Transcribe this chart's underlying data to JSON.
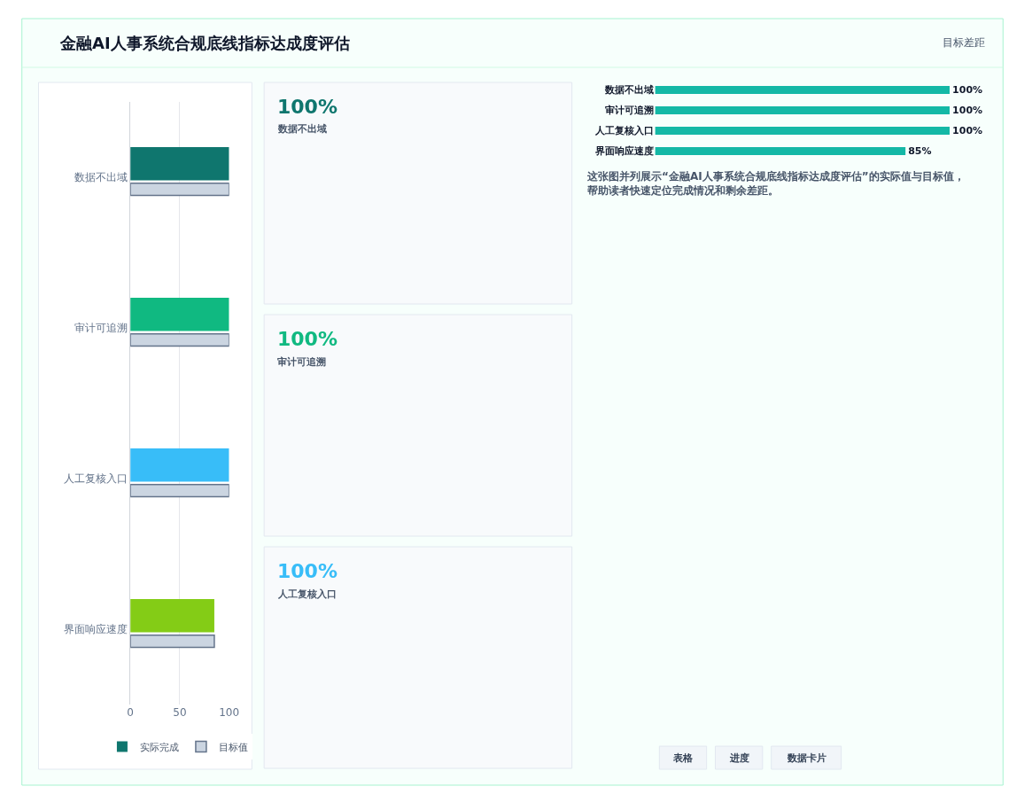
{
  "chart_data": [
    {
      "type": "bar",
      "orientation": "horizontal",
      "title": "金融AI人事系统合规底线指标达成度评估",
      "annotations": [
        "目标差距"
      ],
      "categories": [
        "数据不出域",
        "审计可追溯",
        "人工复核入口",
        "界面响应速度"
      ],
      "series": [
        {
          "name": "实际完成",
          "colors": [
            "#0f766e",
            "#10b981",
            "#38bdf8",
            "#84cc16"
          ],
          "values": [
            100,
            100,
            100,
            85
          ]
        },
        {
          "name": "目标值",
          "color": "#cbd5e1",
          "values": [
            100,
            100,
            100,
            85
          ]
        }
      ],
      "xlim": [
        0,
        100
      ],
      "xticks": [
        0,
        50,
        100
      ],
      "grid": "x",
      "legend": "bottom"
    },
    {
      "type": "other",
      "annotations": [
        "100%",
        "数据不出域",
        "100%",
        "审计可追溯",
        "100%",
        "人工复核入口"
      ],
      "colors": [
        "#0f766e",
        "#10b981",
        "#38bdf8"
      ]
    },
    {
      "type": "bar",
      "orientation": "horizontal",
      "categories": [
        "数据不出域",
        "审计可追溯",
        "人工复核入口",
        "界面响应速度"
      ],
      "values": [
        100,
        100,
        100,
        85
      ],
      "value_labels": [
        "100%",
        "100%",
        "100%",
        "85%"
      ],
      "color": "#14b8a6",
      "xlim": [
        0,
        100
      ],
      "tick_labels": "y"
    },
    {
      "type": "other",
      "annotations": [
        "这张图并列展示“金融AI人事系统合规底线指标达成度评估”的实际值与目标值，帮助读者快速定位完成情况和剩余差距。",
        "表格",
        "进度",
        "数据卡片"
      ]
    }
  ]
}
